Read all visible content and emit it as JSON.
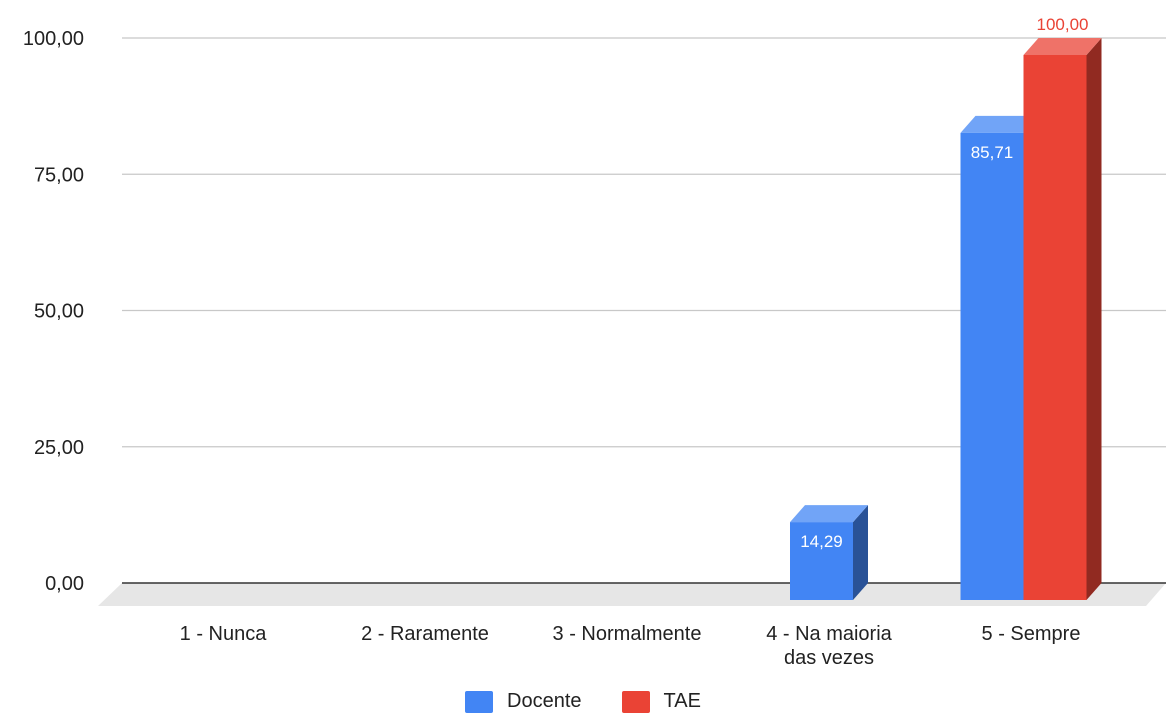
{
  "chart_data": {
    "type": "bar",
    "title": "",
    "xlabel": "",
    "ylabel": "",
    "ylim": [
      0,
      100
    ],
    "yticks": [
      "0,00",
      "25,00",
      "50,00",
      "75,00",
      "100,00"
    ],
    "categories": [
      [
        "1 - Nunca"
      ],
      [
        "2 - Raramente"
      ],
      [
        "3 - Normalmente"
      ],
      [
        "4 - Na maioria",
        "das vezes"
      ],
      [
        "5 - Sempre"
      ]
    ],
    "series": [
      {
        "name": "Docente",
        "color": "#4285f4",
        "values": [
          0,
          0,
          0,
          14.29,
          85.71
        ],
        "labels": [
          "",
          "",
          "",
          "14,29",
          "85,71"
        ]
      },
      {
        "name": "TAE",
        "color": "#ea4335",
        "values": [
          0,
          0,
          0,
          0,
          100
        ],
        "labels": [
          "",
          "",
          "",
          "",
          "100,00"
        ]
      }
    ],
    "grid": true,
    "legend_position": "bottom",
    "style": "3d"
  }
}
